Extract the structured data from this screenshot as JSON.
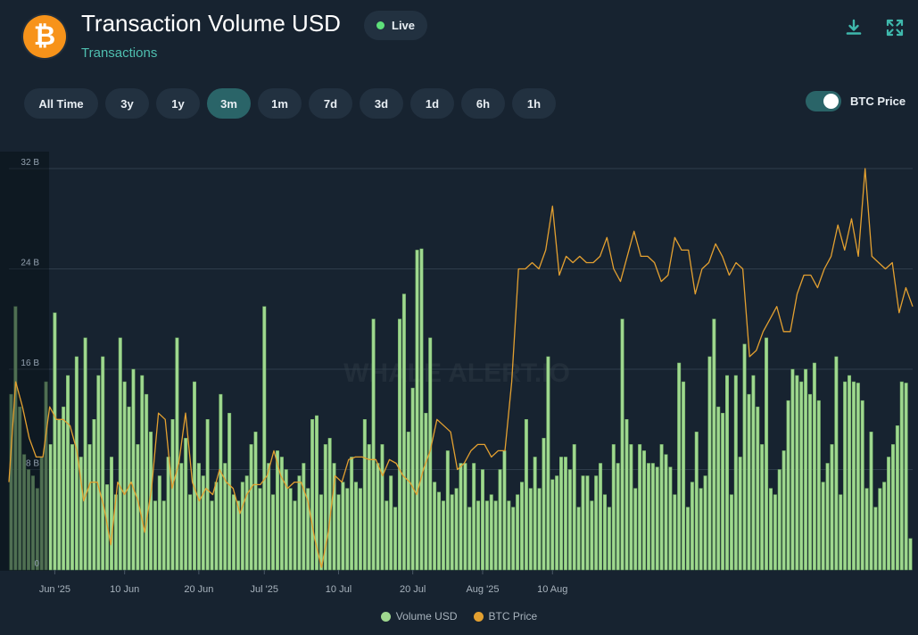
{
  "header": {
    "logo_glyph": "₿",
    "title": "Transaction Volume USD",
    "subtitle": "Transactions",
    "live_label": "Live",
    "live_color": "#5ee07a",
    "download_icon": "download-icon",
    "fullscreen_icon": "fullscreen-icon"
  },
  "ranges": [
    {
      "label": "All Time",
      "active": false
    },
    {
      "label": "3y",
      "active": false
    },
    {
      "label": "1y",
      "active": false
    },
    {
      "label": "3m",
      "active": true
    },
    {
      "label": "1m",
      "active": false
    },
    {
      "label": "7d",
      "active": false
    },
    {
      "label": "3d",
      "active": false
    },
    {
      "label": "1d",
      "active": false
    },
    {
      "label": "6h",
      "active": false
    },
    {
      "label": "1h",
      "active": false
    }
  ],
  "toggle": {
    "label": "BTC Price",
    "on": true
  },
  "colors": {
    "accent": "#4fbfb0",
    "bar": "#9fd88f",
    "bar_stroke": "#6fae63",
    "line": "#e3a030",
    "grid": "#2f3d4b"
  },
  "chart_data": {
    "type": "bar",
    "watermark": "WHALE ALERT.IO",
    "yticks": [
      "0",
      "8 B",
      "16 B",
      "24 B",
      "32 B"
    ],
    "ylim": [
      0,
      32
    ],
    "yunit": "B",
    "xticks": [
      {
        "label": "Jun '25",
        "index": 10
      },
      {
        "label": "10 Jun",
        "index": 26
      },
      {
        "label": "20 Jun",
        "index": 43
      },
      {
        "label": "Jul '25",
        "index": 58
      },
      {
        "label": "10 Jul",
        "index": 75
      },
      {
        "label": "20 Jul",
        "index": 92
      },
      {
        "label": "Aug '25",
        "index": 108
      },
      {
        "label": "10 Aug",
        "index": 124
      }
    ],
    "series": [
      {
        "name": "Volume USD",
        "type": "bar",
        "values": [
          14,
          21,
          13,
          9.2,
          8,
          7.5,
          6.5,
          9,
          15,
          10,
          20.5,
          12,
          13,
          15.5,
          10,
          17,
          9,
          18.5,
          10,
          12,
          15.5,
          17,
          6.8,
          9,
          6,
          18.5,
          15,
          13,
          16,
          10,
          15.5,
          14,
          11,
          5.5,
          7.5,
          5.5,
          9,
          12,
          18.5,
          8.5,
          10.5,
          6,
          15,
          8.5,
          7.5,
          12,
          5.5,
          7,
          14,
          8.5,
          12.5,
          6,
          5.5,
          7,
          7.5,
          10,
          11,
          6.5,
          21,
          8.5,
          6,
          9.5,
          9,
          8,
          6.5,
          5.5,
          7.5,
          8.5,
          6.5,
          12,
          12.3,
          6,
          10,
          10.5,
          8.5,
          6,
          7,
          6.5,
          9,
          7,
          6.5,
          12,
          10,
          20,
          8.5,
          10,
          5.5,
          7.5,
          5,
          20,
          22,
          11,
          14.5,
          25.5,
          25.6,
          12.5,
          18.5,
          7,
          6.2,
          5.5,
          9.5,
          6,
          6.5,
          8.5,
          8.5,
          5,
          8.5,
          5.5,
          8,
          5.5,
          6,
          5.5,
          8,
          9.5,
          5.5,
          5,
          6,
          7,
          12,
          6.5,
          9,
          6.5,
          10.5,
          17,
          7.2,
          7.5,
          9,
          9,
          8,
          10,
          5,
          7.5,
          7.5,
          5.5,
          7.5,
          8.5,
          6,
          5,
          10,
          8.5,
          20,
          12,
          10,
          6.5,
          10,
          9.5,
          8.5,
          8.5,
          8.2,
          10,
          9.2,
          8.2,
          6,
          16.5,
          15,
          5,
          7,
          11,
          6.5,
          7.5,
          17,
          20,
          13,
          12.5,
          15.5,
          6,
          15.5,
          9,
          18,
          14,
          15.5,
          13,
          10,
          18.5,
          6.5,
          6,
          8,
          9.5,
          13.5,
          16,
          15.5,
          15,
          16,
          14,
          16.5,
          13.5,
          7,
          8.5,
          10,
          17,
          6,
          15,
          15.5,
          15,
          14.9,
          13.5,
          6.5,
          11,
          5,
          6.5,
          7,
          9,
          10,
          11.5,
          15,
          14.9,
          2.5
        ]
      },
      {
        "name": "BTC Price",
        "type": "line",
        "values": [
          7,
          15,
          13,
          10.5,
          9,
          9,
          13,
          12,
          12,
          11.5,
          9.5,
          5.5,
          7,
          7,
          5,
          2,
          7,
          6,
          7,
          5.5,
          3,
          6.5,
          12.5,
          12,
          6.5,
          8.5,
          12.5,
          7,
          5.5,
          6.5,
          6,
          8,
          7,
          6.5,
          4.5,
          6,
          6.8,
          6.8,
          7.5,
          9.5,
          7.5,
          6.5,
          7,
          7,
          5.5,
          2.5,
          0.2,
          3,
          7.5,
          7,
          8.8,
          9,
          9,
          8.8,
          8.8,
          7.5,
          8.8,
          8.5,
          7.5,
          7,
          6,
          8,
          9.5,
          12,
          11.5,
          11,
          8,
          8.5,
          9.5,
          10,
          10,
          9,
          9.5,
          9.5,
          15,
          24,
          24,
          24.5,
          24,
          25.5,
          29,
          23.5,
          25,
          24.5,
          25,
          24.5,
          24.5,
          25,
          26.5,
          24,
          23,
          25,
          27,
          25,
          25,
          24.5,
          23,
          23.5,
          26.5,
          25.5,
          25.5,
          22,
          24,
          24.5,
          26,
          25,
          23.5,
          24.5,
          24,
          17,
          17.5,
          19,
          20,
          21,
          19,
          19,
          22,
          23.5,
          23.5,
          22.5,
          24,
          25,
          27.5,
          25.5,
          28,
          25,
          32,
          25,
          24.5,
          24,
          24.5,
          20.5,
          22.5,
          21
        ]
      }
    ],
    "legend": [
      "Volume USD",
      "BTC Price"
    ],
    "legend_position": "bottom-center"
  }
}
